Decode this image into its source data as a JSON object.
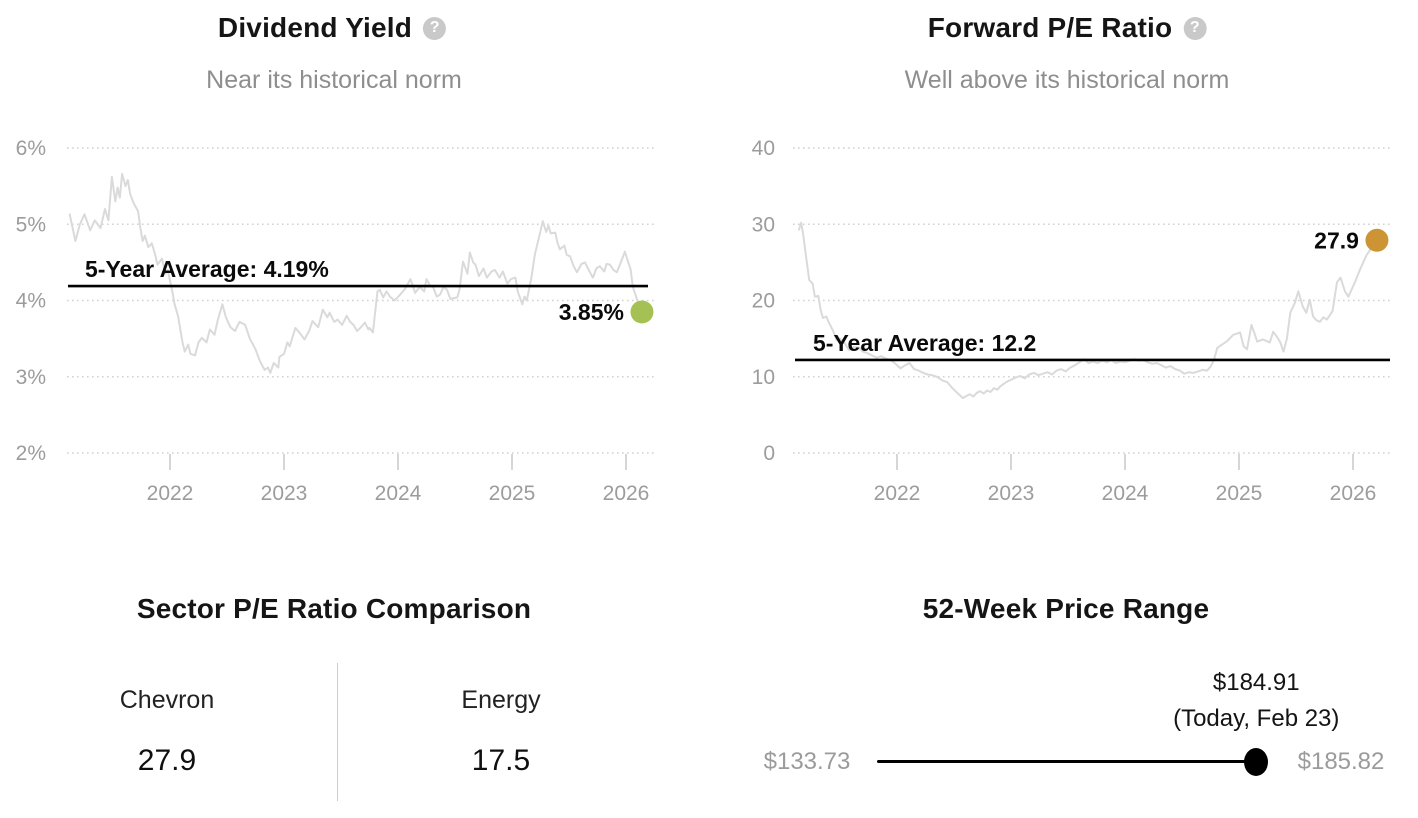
{
  "help_glyph": "?",
  "colors": {
    "dividend_dot": "#a6c153",
    "pe_dot": "#cc9434",
    "series_line": "#dadada",
    "grid": "#d1d1d1",
    "average_line": "#000000",
    "axis_text": "#9c9c9c"
  },
  "chart_data": [
    {
      "type": "line",
      "title": "Dividend Yield",
      "subtitle": "Near its historical norm",
      "help_icon": "question-mark-icon",
      "ylabel": "Dividend Yield (%)",
      "ylim": [
        2,
        6
      ],
      "xlim": [
        2021.12,
        2026.2
      ],
      "grid": "dotted-horizontal",
      "legend": "none",
      "y_tick_labels": [
        "6%",
        "5%",
        "4%",
        "3%",
        "2%"
      ],
      "y_tick_values": [
        6,
        5,
        4,
        3,
        2
      ],
      "x_tick_labels": [
        "2022",
        "2023",
        "2024",
        "2025",
        "2026"
      ],
      "x_tick_values": [
        2022,
        2023,
        2024,
        2025,
        2026
      ],
      "average_label": "5-Year Average: 4.19%",
      "average_value": 4.19,
      "current_label": "3.85%",
      "current_value": 3.85,
      "dot_color": "#a6c153",
      "line_color": "#dadada",
      "points": [
        [
          2021.12,
          5.13
        ],
        [
          2021.17,
          4.78
        ],
        [
          2021.21,
          5.0
        ],
        [
          2021.25,
          5.13
        ],
        [
          2021.3,
          4.92
        ],
        [
          2021.34,
          5.05
        ],
        [
          2021.39,
          4.95
        ],
        [
          2021.43,
          5.2
        ],
        [
          2021.46,
          5.05
        ],
        [
          2021.49,
          5.62
        ],
        [
          2021.52,
          5.3
        ],
        [
          2021.54,
          5.48
        ],
        [
          2021.56,
          5.35
        ],
        [
          2021.58,
          5.66
        ],
        [
          2021.61,
          5.5
        ],
        [
          2021.63,
          5.58
        ],
        [
          2021.65,
          5.4
        ],
        [
          2021.68,
          5.28
        ],
        [
          2021.72,
          5.17
        ],
        [
          2021.74,
          4.95
        ],
        [
          2021.76,
          4.78
        ],
        [
          2021.78,
          4.85
        ],
        [
          2021.81,
          4.7
        ],
        [
          2021.84,
          4.75
        ],
        [
          2021.87,
          4.6
        ],
        [
          2021.89,
          4.47
        ],
        [
          2021.93,
          4.55
        ],
        [
          2021.96,
          4.35
        ],
        [
          2021.98,
          4.4
        ],
        [
          2022.02,
          4.12
        ],
        [
          2022.04,
          3.95
        ],
        [
          2022.07,
          3.8
        ],
        [
          2022.11,
          3.45
        ],
        [
          2022.13,
          3.33
        ],
        [
          2022.16,
          3.42
        ],
        [
          2022.18,
          3.3
        ],
        [
          2022.22,
          3.28
        ],
        [
          2022.25,
          3.45
        ],
        [
          2022.28,
          3.51
        ],
        [
          2022.32,
          3.45
        ],
        [
          2022.35,
          3.62
        ],
        [
          2022.39,
          3.55
        ],
        [
          2022.42,
          3.75
        ],
        [
          2022.46,
          3.95
        ],
        [
          2022.49,
          3.78
        ],
        [
          2022.53,
          3.65
        ],
        [
          2022.57,
          3.6
        ],
        [
          2022.61,
          3.72
        ],
        [
          2022.66,
          3.68
        ],
        [
          2022.7,
          3.5
        ],
        [
          2022.75,
          3.36
        ],
        [
          2022.79,
          3.2
        ],
        [
          2022.83,
          3.09
        ],
        [
          2022.86,
          3.12
        ],
        [
          2022.88,
          3.05
        ],
        [
          2022.91,
          3.18
        ],
        [
          2022.95,
          3.12
        ],
        [
          2022.96,
          3.26
        ],
        [
          2023.0,
          3.3
        ],
        [
          2023.03,
          3.45
        ],
        [
          2023.05,
          3.4
        ],
        [
          2023.1,
          3.64
        ],
        [
          2023.14,
          3.57
        ],
        [
          2023.18,
          3.49
        ],
        [
          2023.22,
          3.6
        ],
        [
          2023.25,
          3.73
        ],
        [
          2023.3,
          3.65
        ],
        [
          2023.34,
          3.88
        ],
        [
          2023.38,
          3.78
        ],
        [
          2023.4,
          3.84
        ],
        [
          2023.44,
          3.72
        ],
        [
          2023.47,
          3.75
        ],
        [
          2023.51,
          3.68
        ],
        [
          2023.55,
          3.8
        ],
        [
          2023.58,
          3.72
        ],
        [
          2023.61,
          3.68
        ],
        [
          2023.64,
          3.6
        ],
        [
          2023.67,
          3.64
        ],
        [
          2023.71,
          3.71
        ],
        [
          2023.74,
          3.62
        ],
        [
          2023.75,
          3.64
        ],
        [
          2023.78,
          3.58
        ],
        [
          2023.82,
          4.12
        ],
        [
          2023.84,
          4.14
        ],
        [
          2023.87,
          4.04
        ],
        [
          2023.9,
          4.12
        ],
        [
          2023.93,
          4.05
        ],
        [
          2023.97,
          4.0
        ],
        [
          2024.02,
          4.08
        ],
        [
          2024.06,
          4.15
        ],
        [
          2024.11,
          4.28
        ],
        [
          2024.15,
          4.1
        ],
        [
          2024.19,
          4.18
        ],
        [
          2024.23,
          4.12
        ],
        [
          2024.25,
          4.28
        ],
        [
          2024.28,
          4.2
        ],
        [
          2024.31,
          4.17
        ],
        [
          2024.34,
          4.05
        ],
        [
          2024.37,
          4.08
        ],
        [
          2024.4,
          4.18
        ],
        [
          2024.43,
          4.14
        ],
        [
          2024.46,
          4.02
        ],
        [
          2024.52,
          4.04
        ],
        [
          2024.54,
          4.15
        ],
        [
          2024.57,
          4.51
        ],
        [
          2024.61,
          4.35
        ],
        [
          2024.63,
          4.63
        ],
        [
          2024.66,
          4.5
        ],
        [
          2024.68,
          4.47
        ],
        [
          2024.71,
          4.32
        ],
        [
          2024.75,
          4.42
        ],
        [
          2024.78,
          4.3
        ],
        [
          2024.82,
          4.38
        ],
        [
          2024.85,
          4.4
        ],
        [
          2024.89,
          4.3
        ],
        [
          2024.92,
          4.38
        ],
        [
          2024.96,
          4.22
        ],
        [
          2024.99,
          4.28
        ],
        [
          2025.03,
          4.3
        ],
        [
          2025.05,
          4.12
        ],
        [
          2025.09,
          3.95
        ],
        [
          2025.11,
          4.05
        ],
        [
          2025.13,
          4.0
        ],
        [
          2025.17,
          4.3
        ],
        [
          2025.2,
          4.6
        ],
        [
          2025.24,
          4.85
        ],
        [
          2025.27,
          5.04
        ],
        [
          2025.3,
          4.9
        ],
        [
          2025.32,
          4.98
        ],
        [
          2025.34,
          4.88
        ],
        [
          2025.38,
          4.89
        ],
        [
          2025.4,
          4.75
        ],
        [
          2025.42,
          4.67
        ],
        [
          2025.46,
          4.72
        ],
        [
          2025.48,
          4.6
        ],
        [
          2025.51,
          4.58
        ],
        [
          2025.54,
          4.45
        ],
        [
          2025.57,
          4.37
        ],
        [
          2025.61,
          4.48
        ],
        [
          2025.64,
          4.5
        ],
        [
          2025.68,
          4.38
        ],
        [
          2025.71,
          4.3
        ],
        [
          2025.74,
          4.42
        ],
        [
          2025.77,
          4.45
        ],
        [
          2025.81,
          4.38
        ],
        [
          2025.83,
          4.48
        ],
        [
          2025.86,
          4.47
        ],
        [
          2025.89,
          4.4
        ],
        [
          2025.92,
          4.37
        ],
        [
          2025.96,
          4.52
        ],
        [
          2025.99,
          4.64
        ],
        [
          2026.02,
          4.5
        ],
        [
          2026.04,
          4.41
        ],
        [
          2026.06,
          4.18
        ],
        [
          2026.1,
          4.0
        ],
        [
          2026.12,
          3.92
        ],
        [
          2026.14,
          3.85
        ]
      ]
    },
    {
      "type": "line",
      "title": "Forward P/E Ratio",
      "subtitle": "Well above its historical norm",
      "help_icon": "question-mark-icon",
      "ylabel": "Forward P/E",
      "ylim": [
        0,
        40
      ],
      "xlim": [
        2021.14,
        2026.21
      ],
      "grid": "dotted-horizontal",
      "legend": "none",
      "y_tick_labels": [
        "40",
        "30",
        "20",
        "10",
        "0"
      ],
      "y_tick_values": [
        40,
        30,
        20,
        10,
        0
      ],
      "x_tick_labels": [
        "2022",
        "2023",
        "2024",
        "2025",
        "2026"
      ],
      "x_tick_values": [
        2022,
        2023,
        2024,
        2025,
        2026
      ],
      "average_label": "5-Year Average: 12.2",
      "average_value": 12.2,
      "current_label": "27.9",
      "current_value": 27.9,
      "dot_color": "#cc9434",
      "line_color": "#dadada",
      "points": [
        [
          2021.14,
          29.3
        ],
        [
          2021.16,
          30.2
        ],
        [
          2021.18,
          28.4
        ],
        [
          2021.2,
          26.0
        ],
        [
          2021.23,
          22.7
        ],
        [
          2021.26,
          22.2
        ],
        [
          2021.28,
          20.5
        ],
        [
          2021.31,
          20.6
        ],
        [
          2021.33,
          18.8
        ],
        [
          2021.35,
          17.7
        ],
        [
          2021.38,
          17.9
        ],
        [
          2021.4,
          17.2
        ],
        [
          2021.44,
          16.0
        ],
        [
          2021.47,
          14.8
        ],
        [
          2021.5,
          15.0
        ],
        [
          2021.54,
          14.4
        ],
        [
          2021.58,
          13.5
        ],
        [
          2021.62,
          13.9
        ],
        [
          2021.67,
          13.8
        ],
        [
          2021.7,
          13.3
        ],
        [
          2021.74,
          13.1
        ],
        [
          2021.78,
          12.8
        ],
        [
          2021.82,
          12.5
        ],
        [
          2021.86,
          12.7
        ],
        [
          2021.9,
          12.4
        ],
        [
          2021.94,
          12.2
        ],
        [
          2021.98,
          11.8
        ],
        [
          2022.03,
          11.1
        ],
        [
          2022.07,
          11.5
        ],
        [
          2022.11,
          11.8
        ],
        [
          2022.15,
          11.0
        ],
        [
          2022.19,
          10.8
        ],
        [
          2022.23,
          10.5
        ],
        [
          2022.27,
          10.3
        ],
        [
          2022.31,
          10.2
        ],
        [
          2022.35,
          10.0
        ],
        [
          2022.4,
          9.5
        ],
        [
          2022.44,
          9.3
        ],
        [
          2022.48,
          8.6
        ],
        [
          2022.52,
          8.0
        ],
        [
          2022.55,
          7.6
        ],
        [
          2022.58,
          7.2
        ],
        [
          2022.61,
          7.5
        ],
        [
          2022.64,
          7.7
        ],
        [
          2022.67,
          7.4
        ],
        [
          2022.7,
          7.9
        ],
        [
          2022.73,
          8.1
        ],
        [
          2022.76,
          7.8
        ],
        [
          2022.79,
          8.2
        ],
        [
          2022.82,
          8.0
        ],
        [
          2022.85,
          8.5
        ],
        [
          2022.88,
          8.3
        ],
        [
          2022.91,
          8.8
        ],
        [
          2022.94,
          9.1
        ],
        [
          2022.97,
          9.4
        ],
        [
          2023.0,
          9.6
        ],
        [
          2023.04,
          9.9
        ],
        [
          2023.08,
          10.1
        ],
        [
          2023.12,
          9.8
        ],
        [
          2023.16,
          10.3
        ],
        [
          2023.2,
          10.5
        ],
        [
          2023.24,
          10.2
        ],
        [
          2023.28,
          10.4
        ],
        [
          2023.32,
          10.6
        ],
        [
          2023.36,
          10.3
        ],
        [
          2023.4,
          10.8
        ],
        [
          2023.44,
          11.0
        ],
        [
          2023.48,
          10.7
        ],
        [
          2023.52,
          11.2
        ],
        [
          2023.56,
          11.5
        ],
        [
          2023.6,
          11.9
        ],
        [
          2023.64,
          12.3
        ],
        [
          2023.68,
          11.8
        ],
        [
          2023.72,
          12.0
        ],
        [
          2023.76,
          11.8
        ],
        [
          2023.8,
          12.1
        ],
        [
          2023.84,
          11.9
        ],
        [
          2023.88,
          12.2
        ],
        [
          2023.92,
          11.8
        ],
        [
          2023.96,
          12.0
        ],
        [
          2024.0,
          11.9
        ],
        [
          2024.04,
          12.1
        ],
        [
          2024.08,
          12.3
        ],
        [
          2024.12,
          12.1
        ],
        [
          2024.16,
          12.2
        ],
        [
          2024.2,
          11.9
        ],
        [
          2024.24,
          11.7
        ],
        [
          2024.28,
          11.8
        ],
        [
          2024.32,
          11.5
        ],
        [
          2024.36,
          11.2
        ],
        [
          2024.4,
          11.4
        ],
        [
          2024.44,
          11.0
        ],
        [
          2024.48,
          10.8
        ],
        [
          2024.52,
          10.4
        ],
        [
          2024.56,
          10.6
        ],
        [
          2024.6,
          10.5
        ],
        [
          2024.64,
          10.7
        ],
        [
          2024.68,
          10.9
        ],
        [
          2024.72,
          10.8
        ],
        [
          2024.75,
          11.3
        ],
        [
          2024.78,
          12.2
        ],
        [
          2024.81,
          13.8
        ],
        [
          2024.85,
          14.2
        ],
        [
          2024.89,
          14.6
        ],
        [
          2024.95,
          15.5
        ],
        [
          2025.01,
          15.8
        ],
        [
          2025.04,
          14.0
        ],
        [
          2025.07,
          13.6
        ],
        [
          2025.11,
          16.8
        ],
        [
          2025.14,
          15.5
        ],
        [
          2025.16,
          14.6
        ],
        [
          2025.21,
          14.9
        ],
        [
          2025.27,
          14.5
        ],
        [
          2025.3,
          15.9
        ],
        [
          2025.33,
          15.3
        ],
        [
          2025.36,
          14.6
        ],
        [
          2025.39,
          13.3
        ],
        [
          2025.42,
          15.0
        ],
        [
          2025.45,
          18.4
        ],
        [
          2025.49,
          19.7
        ],
        [
          2025.52,
          21.2
        ],
        [
          2025.56,
          19.2
        ],
        [
          2025.59,
          18.4
        ],
        [
          2025.62,
          20.1
        ],
        [
          2025.65,
          17.9
        ],
        [
          2025.68,
          17.4
        ],
        [
          2025.71,
          17.2
        ],
        [
          2025.74,
          17.8
        ],
        [
          2025.77,
          17.5
        ],
        [
          2025.82,
          18.6
        ],
        [
          2025.86,
          22.4
        ],
        [
          2025.89,
          23.0
        ],
        [
          2025.93,
          21.2
        ],
        [
          2025.96,
          20.5
        ],
        [
          2026.02,
          22.5
        ],
        [
          2026.06,
          24.0
        ],
        [
          2026.12,
          26.0
        ],
        [
          2026.17,
          27.0
        ],
        [
          2026.21,
          27.9
        ]
      ]
    },
    {
      "type": "table",
      "title": "Sector P/E Ratio Comparison",
      "columns": [
        {
          "label": "Chevron",
          "value": "27.9"
        },
        {
          "label": "Energy",
          "value": "17.5"
        }
      ]
    },
    {
      "type": "range",
      "title": "52-Week Price Range",
      "low_label": "$133.73",
      "high_label": "$185.82",
      "low": 133.73,
      "high": 185.82,
      "current": 184.91,
      "current_label": "$184.91",
      "current_sublabel": "(Today, Feb 23)",
      "dot_color": "#000000"
    }
  ]
}
